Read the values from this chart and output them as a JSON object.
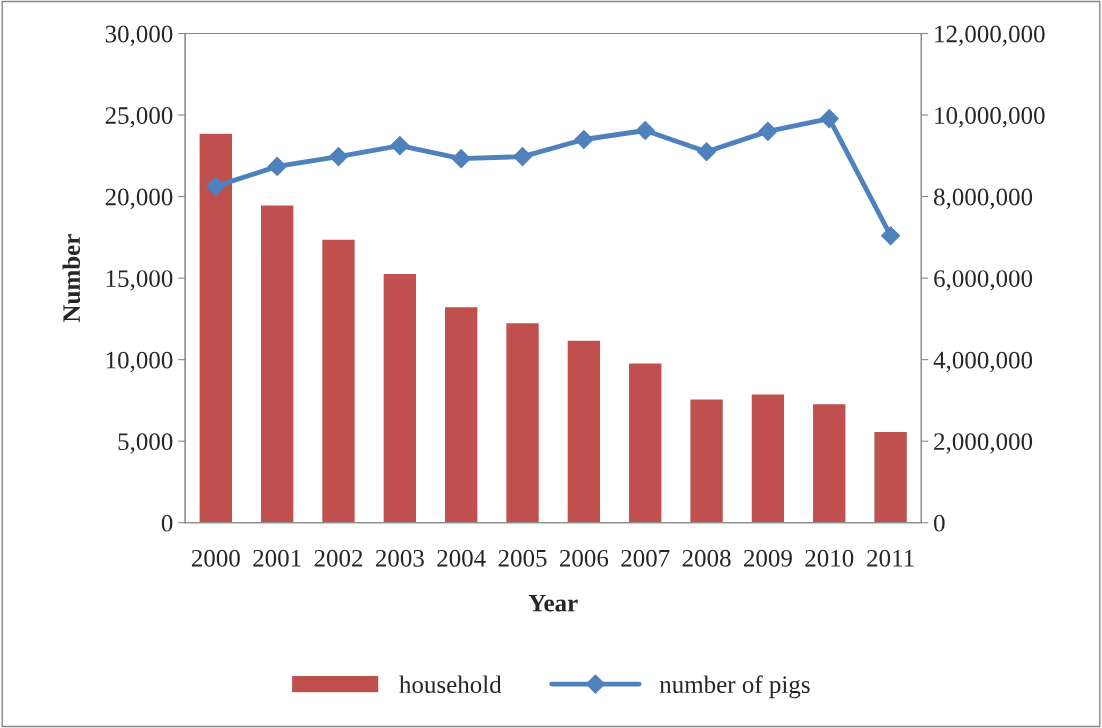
{
  "chart_data": {
    "type": "bar",
    "xlabel": "Year",
    "ylabel": "Number",
    "categories": [
      "2000",
      "2001",
      "2002",
      "2003",
      "2004",
      "2005",
      "2006",
      "2007",
      "2008",
      "2009",
      "2010",
      "2011"
    ],
    "series": [
      {
        "name": "household",
        "color": "#c0504d",
        "values": [
          23900,
          19500,
          17400,
          15300,
          13250,
          12270,
          11200,
          9800,
          7600,
          7900,
          7300,
          5600
        ]
      },
      {
        "name": "number of pigs",
        "type": "line",
        "axis": "y2",
        "color": "#4f81bd",
        "marker": "diamond",
        "values": [
          8250000,
          8740000,
          8980000,
          9250000,
          8930000,
          8980000,
          9400000,
          9620000,
          9100000,
          9600000,
          9910000,
          7040000
        ]
      }
    ],
    "ylim": [
      0,
      30000
    ],
    "yticks": [
      {
        "value": 0,
        "label": "0"
      },
      {
        "value": 5000,
        "label": "5,000"
      },
      {
        "value": 10000,
        "label": "10,000"
      },
      {
        "value": 15000,
        "label": "15,000"
      },
      {
        "value": 20000,
        "label": "20,000"
      },
      {
        "value": 25000,
        "label": "25,000"
      },
      {
        "value": 30000,
        "label": "30,000"
      }
    ],
    "y2lim": [
      0,
      12000000
    ],
    "y2ticks": [
      {
        "value": 0,
        "label": "0"
      },
      {
        "value": 2000000,
        "label": "2,000,000"
      },
      {
        "value": 4000000,
        "label": "4,000,000"
      },
      {
        "value": 6000000,
        "label": "6,000,000"
      },
      {
        "value": 8000000,
        "label": "8,000,000"
      },
      {
        "value": 10000000,
        "label": "10,000,000"
      },
      {
        "value": 12000000,
        "label": "12,000,000"
      }
    ],
    "grid": false,
    "legend": "bottom"
  }
}
